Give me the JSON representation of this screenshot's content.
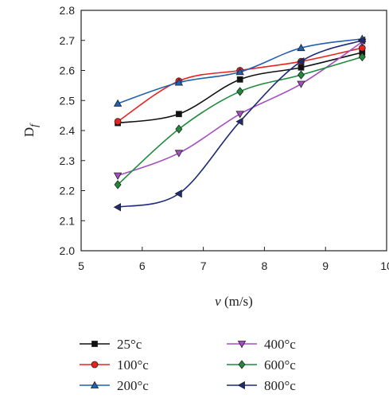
{
  "chart_data": {
    "type": "line",
    "xlabel_italic": "v",
    "xlabel_rest": " (m/s)",
    "ylabel_main": "D",
    "ylabel_sub": "f",
    "xlim": [
      5,
      10
    ],
    "ylim": [
      2.0,
      2.8
    ],
    "x_ticks": [
      "5",
      "6",
      "7",
      "8",
      "9",
      "10"
    ],
    "y_ticks": [
      "2.0",
      "2.1",
      "2.2",
      "2.3",
      "2.4",
      "2.5",
      "2.6",
      "2.7",
      "2.8"
    ],
    "grid": false,
    "legend_position": "bottom",
    "x": [
      5.6,
      6.6,
      7.6,
      8.6,
      9.6
    ],
    "series": [
      {
        "name": "25°c",
        "color": "#111111",
        "marker": "square",
        "values": [
          2.425,
          2.455,
          2.57,
          2.61,
          2.66
        ]
      },
      {
        "name": "100°c",
        "color": "#e8231f",
        "marker": "circle",
        "values": [
          2.43,
          2.565,
          2.6,
          2.63,
          2.675
        ]
      },
      {
        "name": "200°c",
        "color": "#2160b0",
        "marker": "triangle-up",
        "values": [
          2.49,
          2.56,
          2.595,
          2.675,
          2.705
        ]
      },
      {
        "name": "400°c",
        "color": "#a34fc0",
        "marker": "triangle-down",
        "values": [
          2.25,
          2.325,
          2.455,
          2.555,
          2.695
        ]
      },
      {
        "name": "600°c",
        "color": "#1f8a3c",
        "marker": "diamond",
        "values": [
          2.22,
          2.405,
          2.53,
          2.585,
          2.645
        ]
      },
      {
        "name": "800°c",
        "color": "#1d2b78",
        "marker": "triangle-left",
        "values": [
          2.145,
          2.19,
          2.43,
          2.63,
          2.7
        ]
      }
    ]
  }
}
